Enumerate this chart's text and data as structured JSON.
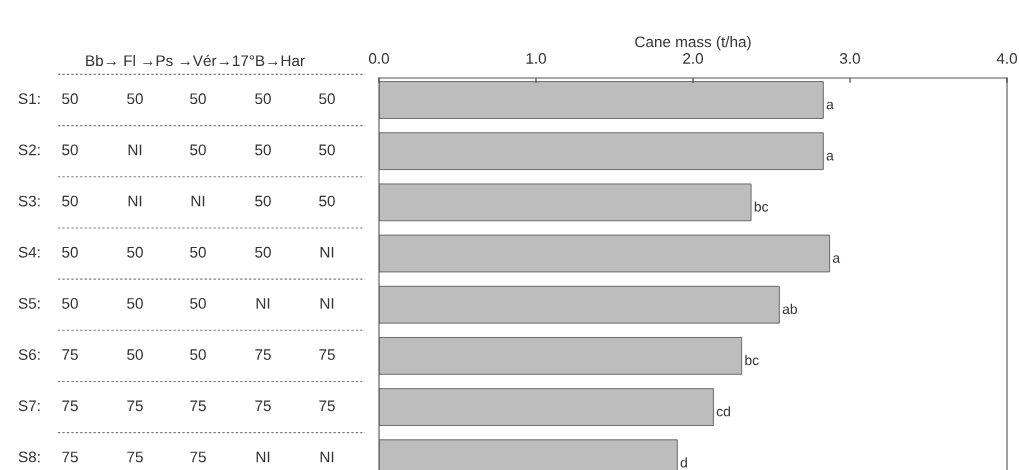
{
  "chart_data": {
    "type": "bar",
    "orientation": "horizontal",
    "xlabel": "Cane mass (t/ha)",
    "categories": [
      null,
      null,
      null,
      null,
      null,
      null,
      null,
      null
    ],
    "values": [
      2.83,
      2.83,
      2.37,
      2.87,
      2.55,
      2.31,
      2.13,
      1.9
    ],
    "value_labels": [
      "a",
      "a",
      "bc",
      "a",
      "ab",
      "bc",
      "cd",
      "d"
    ],
    "color": "#bdbdbd",
    "xlim": [
      0,
      4
    ],
    "xticks": [
      {
        "value": 0,
        "label": "0.0"
      },
      {
        "value": 1,
        "label": "1.0"
      },
      {
        "value": 2,
        "label": "2.0"
      },
      {
        "value": 3,
        "label": "3.0"
      },
      {
        "value": 4,
        "label": "4.0"
      }
    ],
    "grid": false,
    "legend": false,
    "annotations": [
      "Bb→ Fl →Ps →Vér→17°B→Har",
      "S1:",
      "S2:",
      "S3:",
      "S4:",
      "S5:",
      "S6:",
      "S7:",
      "S8:",
      "50",
      "50",
      "50",
      "50",
      "50",
      "50",
      "NI",
      "50",
      "50",
      "50",
      "50",
      "NI",
      "NI",
      "50",
      "50",
      "50",
      "50",
      "50",
      "50",
      "NI",
      "50",
      "50",
      "50",
      "NI",
      "NI",
      "75",
      "50",
      "50",
      "75",
      "75",
      "75",
      "75",
      "75",
      "75",
      "75",
      "75",
      "75",
      "75",
      "NI",
      "NI"
    ]
  }
}
